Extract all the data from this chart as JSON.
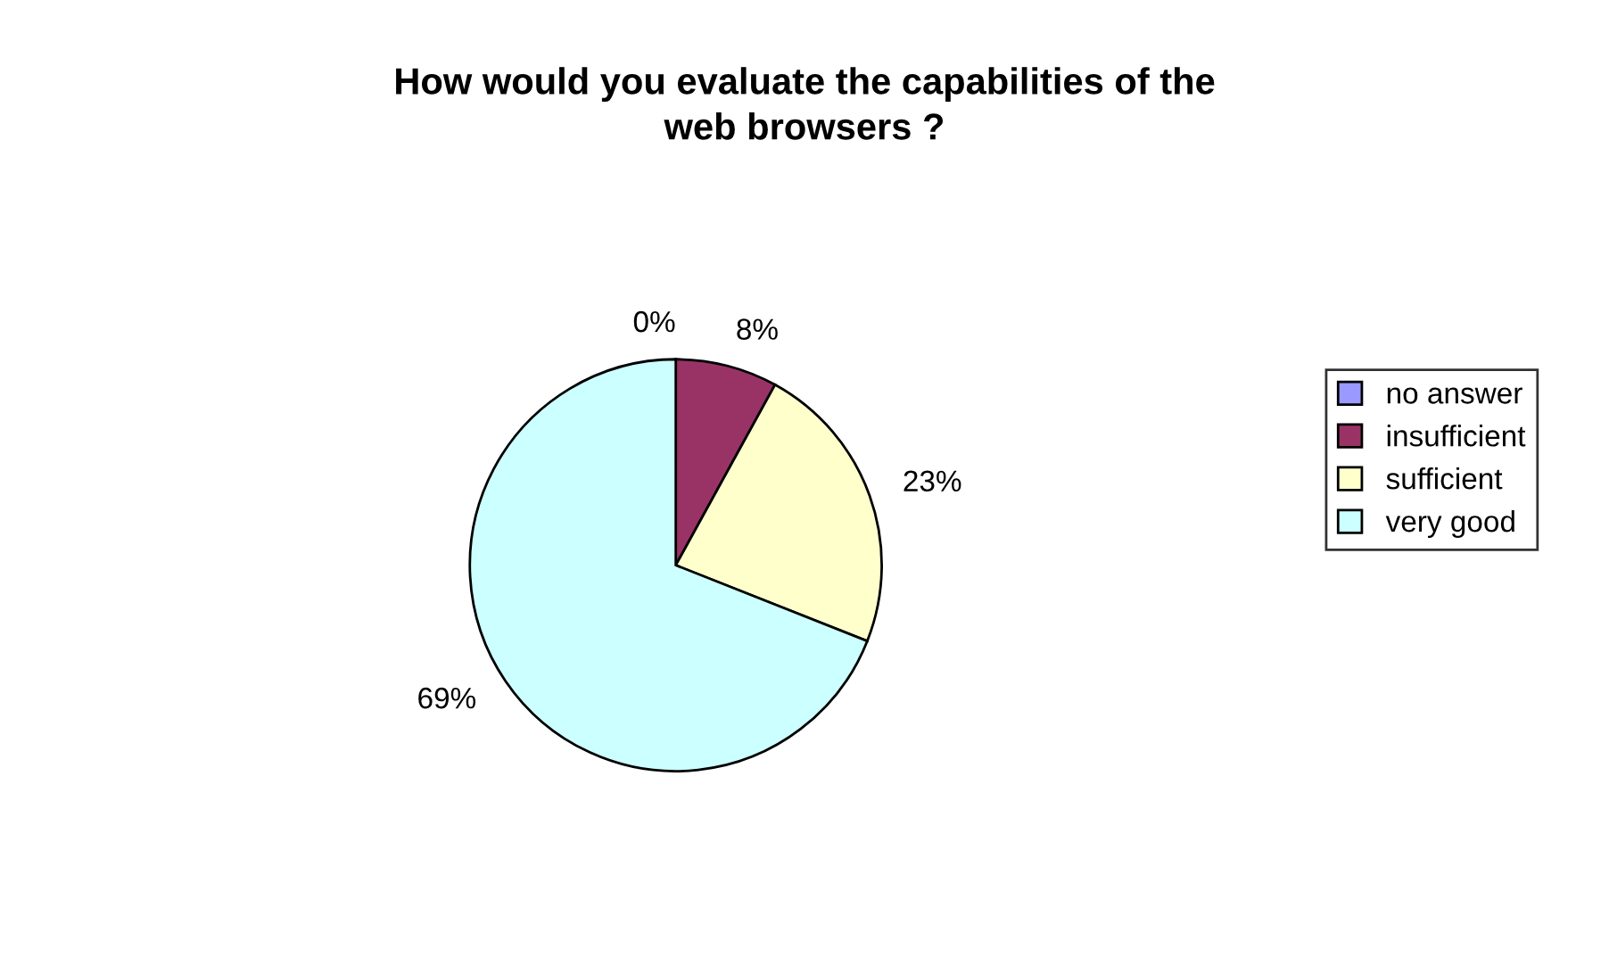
{
  "chart_data": {
    "type": "pie",
    "title": "How would you evaluate the capabilities of the\nweb browsers ?",
    "categories": [
      "no answer",
      "insufficient",
      "sufficient",
      "very good"
    ],
    "values": [
      0,
      8,
      23,
      69
    ],
    "colors": [
      "#9999ff",
      "#993366",
      "#ffffcc",
      "#ccffff"
    ],
    "value_labels": [
      "0%",
      "8%",
      "23%",
      "69%"
    ],
    "legend": "right"
  }
}
